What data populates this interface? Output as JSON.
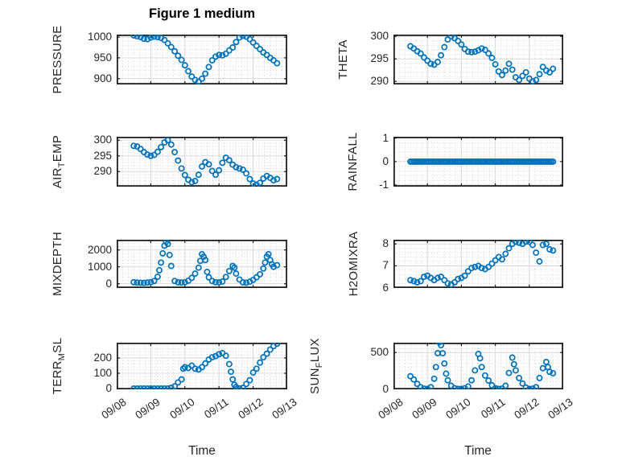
{
  "figure": {
    "title": "Figure 1 medium"
  },
  "xaxis": {
    "label": "Time",
    "tick_labels": [
      "09/08",
      "09/09",
      "09/10",
      "09/11",
      "09/12",
      "09/13"
    ],
    "tick_values": [
      0,
      1,
      2,
      3,
      4,
      5
    ],
    "unit": "days from 09/08"
  },
  "colors": {
    "marker": "#0072BD",
    "axis": "#1f1f1f",
    "grid_major": "#d9d9d9",
    "grid_minor": "#d4d4d4",
    "background": "#ffffff",
    "text": "#262626"
  },
  "chart_data": [
    {
      "type": "scatter",
      "name": "PRESSURE",
      "ylabel": {
        "pre": "PRESSURE",
        "sub": "",
        "post": ""
      },
      "yticks": [
        900,
        950,
        1000
      ],
      "ylim": [
        886,
        1006
      ],
      "y_minor_step": 10,
      "x": [
        0.5,
        0.6,
        0.7,
        0.8,
        0.9,
        1.0,
        1.1,
        1.2,
        1.3,
        1.4,
        1.5,
        1.6,
        1.7,
        1.8,
        1.9,
        2.0,
        2.1,
        2.2,
        2.3,
        2.4,
        2.5,
        2.6,
        2.7,
        2.8,
        2.9,
        3.0,
        3.1,
        3.2,
        3.3,
        3.4,
        3.5,
        3.6,
        3.7,
        3.8,
        3.9,
        4.0,
        4.1,
        4.2,
        4.3,
        4.4,
        4.5,
        4.6,
        4.7
      ],
      "y": [
        1004,
        1002,
        1000,
        996,
        995,
        999,
        1001,
        1000,
        998,
        993,
        985,
        976,
        966,
        955,
        945,
        932,
        918,
        905,
        897,
        893,
        900,
        912,
        928,
        944,
        953,
        957,
        956,
        960,
        968,
        975,
        988,
        999,
        1003,
        1001,
        995,
        987,
        979,
        971,
        963,
        957,
        950,
        944,
        937
      ]
    },
    {
      "type": "scatter",
      "name": "THETA",
      "ylabel": {
        "pre": "THETA",
        "sub": "",
        "post": ""
      },
      "yticks": [
        290,
        295,
        300
      ],
      "ylim": [
        289.3,
        300.4
      ],
      "y_minor_step": 1,
      "x": [
        0.5,
        0.6,
        0.7,
        0.8,
        0.9,
        1.0,
        1.1,
        1.2,
        1.3,
        1.4,
        1.5,
        1.6,
        1.7,
        1.8,
        1.9,
        2.0,
        2.1,
        2.2,
        2.3,
        2.4,
        2.5,
        2.6,
        2.7,
        2.8,
        2.9,
        3.0,
        3.1,
        3.2,
        3.3,
        3.4,
        3.5,
        3.6,
        3.7,
        3.8,
        3.9,
        4.0,
        4.1,
        4.2,
        4.3,
        4.4,
        4.5,
        4.6,
        4.7
      ],
      "y": [
        297.8,
        297.3,
        296.7,
        296.2,
        295.3,
        294.6,
        293.9,
        293.7,
        294.3,
        295.8,
        297.6,
        299.3,
        300,
        299.6,
        299,
        298.2,
        297.2,
        296.6,
        296.5,
        296.6,
        296.9,
        297.3,
        297,
        296.2,
        295.2,
        293.8,
        292.2,
        291.4,
        292.4,
        293.9,
        292.6,
        290.9,
        290.3,
        291.2,
        292,
        290.6,
        290,
        290.3,
        291.6,
        293.2,
        292.4,
        292,
        292.8
      ]
    },
    {
      "type": "scatter",
      "name": "AIR_TEMP",
      "ylabel": {
        "pre": "AIR",
        "sub": "T",
        "post": "EMP"
      },
      "yticks": [
        290,
        295,
        300
      ],
      "ylim": [
        285.2,
        301.1
      ],
      "y_minor_step": 1,
      "x": [
        0.5,
        0.6,
        0.7,
        0.8,
        0.9,
        1.0,
        1.1,
        1.2,
        1.3,
        1.4,
        1.5,
        1.6,
        1.7,
        1.8,
        1.9,
        2.0,
        2.1,
        2.2,
        2.3,
        2.4,
        2.5,
        2.6,
        2.7,
        2.8,
        2.9,
        3.0,
        3.1,
        3.2,
        3.3,
        3.4,
        3.5,
        3.6,
        3.7,
        3.8,
        3.9,
        4.0,
        4.1,
        4.2,
        4.3,
        4.4,
        4.5,
        4.6,
        4.7
      ],
      "y": [
        298.2,
        298,
        297.2,
        296.2,
        295.4,
        295,
        295.3,
        296.3,
        297.8,
        299.3,
        300,
        298.6,
        296.2,
        293.5,
        291,
        288.9,
        287.4,
        286.6,
        287,
        289,
        291.6,
        293,
        292.3,
        290.2,
        289,
        290.4,
        292.8,
        294.4,
        293.6,
        292.2,
        291.4,
        291,
        290.6,
        289.4,
        287.6,
        286.2,
        285.8,
        286.4,
        287.8,
        288.6,
        288,
        287.2,
        287.6
      ]
    },
    {
      "type": "scatter",
      "name": "RAINFALL",
      "ylabel": {
        "pre": "RAINFALL",
        "sub": "",
        "post": ""
      },
      "yticks": [
        -1,
        0,
        1
      ],
      "ylim": [
        -1.07,
        1.06
      ],
      "y_minor_step": 0.2,
      "x": [
        0.5,
        0.55,
        0.6,
        0.65,
        0.7,
        0.75,
        0.8,
        0.85,
        0.9,
        0.95,
        1,
        1.05,
        1.1,
        1.15,
        1.2,
        1.25,
        1.3,
        1.35,
        1.4,
        1.45,
        1.5,
        1.55,
        1.6,
        1.65,
        1.7,
        1.75,
        1.8,
        1.85,
        1.9,
        1.95,
        2,
        2.05,
        2.1,
        2.15,
        2.2,
        2.25,
        2.3,
        2.35,
        2.4,
        2.45,
        2.5,
        2.55,
        2.6,
        2.65,
        2.7,
        2.75,
        2.8,
        2.85,
        2.9,
        2.95,
        3,
        3.05,
        3.1,
        3.15,
        3.2,
        3.25,
        3.3,
        3.35,
        3.4,
        3.45,
        3.5,
        3.55,
        3.6,
        3.65,
        3.7,
        3.75,
        3.8,
        3.85,
        3.9,
        3.95,
        4,
        4.05,
        4.1,
        4.15,
        4.2,
        4.25,
        4.3,
        4.35,
        4.4,
        4.45,
        4.5,
        4.55,
        4.6,
        4.65,
        4.7
      ],
      "y": [
        0,
        0,
        0,
        0,
        0,
        0,
        0,
        0,
        0,
        0,
        0,
        0,
        0,
        0,
        0,
        0,
        0,
        0,
        0,
        0,
        0,
        0,
        0,
        0,
        0,
        0,
        0,
        0,
        0,
        0,
        0,
        0,
        0,
        0,
        0,
        0,
        0,
        0,
        0,
        0,
        0,
        0,
        0,
        0,
        0,
        0,
        0,
        0,
        0,
        0,
        0,
        0,
        0,
        0,
        0,
        0,
        0,
        0,
        0,
        0,
        0,
        0,
        0,
        0,
        0,
        0,
        0,
        0,
        0,
        0,
        0,
        0,
        0,
        0,
        0,
        0,
        0,
        0,
        0,
        0,
        0,
        0,
        0,
        0,
        0
      ]
    },
    {
      "type": "scatter",
      "name": "MIXDEPTH",
      "ylabel": {
        "pre": "MIXDEPTH",
        "sub": "",
        "post": ""
      },
      "yticks": [
        0,
        1000,
        2000
      ],
      "ylim": [
        -252,
        2604
      ],
      "y_minor_step": 200,
      "x": [
        0.5,
        0.6,
        0.7,
        0.8,
        0.9,
        1.0,
        1.1,
        1.2,
        1.25,
        1.3,
        1.35,
        1.4,
        1.45,
        1.5,
        1.55,
        1.6,
        1.7,
        1.8,
        1.9,
        2.0,
        2.1,
        2.2,
        2.3,
        2.4,
        2.45,
        2.5,
        2.55,
        2.6,
        2.65,
        2.7,
        2.8,
        2.9,
        3.0,
        3.1,
        3.2,
        3.3,
        3.4,
        3.45,
        3.5,
        3.6,
        3.7,
        3.8,
        3.9,
        4.0,
        4.1,
        4.2,
        4.3,
        4.35,
        4.4,
        4.45,
        4.5,
        4.55,
        4.6,
        4.7
      ],
      "y": [
        90,
        70,
        60,
        55,
        70,
        90,
        160,
        420,
        800,
        1250,
        1800,
        2250,
        2480,
        2350,
        1700,
        1050,
        160,
        80,
        70,
        90,
        180,
        350,
        600,
        950,
        1350,
        1750,
        1600,
        1400,
        700,
        380,
        160,
        90,
        80,
        130,
        400,
        750,
        1050,
        950,
        600,
        250,
        80,
        60,
        120,
        230,
        380,
        560,
        900,
        1250,
        1600,
        1750,
        1400,
        1150,
        1000,
        1100
      ]
    },
    {
      "type": "scatter",
      "name": "H2OMIXRA",
      "ylabel": {
        "pre": "H2OMIXRA",
        "sub": "",
        "post": ""
      },
      "yticks": [
        6,
        7,
        8
      ],
      "ylim": [
        5.99,
        8.19
      ],
      "y_minor_step": 0.2,
      "x": [
        0.5,
        0.6,
        0.7,
        0.8,
        0.9,
        1.0,
        1.1,
        1.2,
        1.3,
        1.4,
        1.5,
        1.6,
        1.7,
        1.8,
        1.9,
        2.0,
        2.1,
        2.2,
        2.3,
        2.4,
        2.5,
        2.6,
        2.7,
        2.8,
        2.9,
        3.0,
        3.1,
        3.2,
        3.3,
        3.4,
        3.5,
        3.6,
        3.7,
        3.8,
        3.9,
        4.0,
        4.1,
        4.2,
        4.3,
        4.4,
        4.5,
        4.6,
        4.7
      ],
      "y": [
        6.35,
        6.3,
        6.25,
        6.3,
        6.5,
        6.55,
        6.45,
        6.35,
        6.45,
        6.5,
        6.35,
        6.2,
        6.15,
        6.25,
        6.4,
        6.45,
        6.55,
        6.75,
        6.9,
        6.95,
        7.0,
        6.9,
        6.85,
        6.95,
        7.1,
        7.25,
        7.4,
        7.3,
        7.55,
        7.8,
        8.0,
        8.1,
        8.05,
        8.0,
        8.1,
        8.1,
        7.95,
        7.6,
        7.2,
        7.95,
        8.0,
        7.75,
        7.7
      ]
    },
    {
      "type": "scatter",
      "name": "TERR_MSL",
      "ylabel": {
        "pre": "TERR",
        "sub": "M",
        "post": "SL"
      },
      "yticks": [
        0,
        100,
        200
      ],
      "ylim": [
        -5,
        300
      ],
      "y_minor_step": 20,
      "x": [
        0.5,
        0.6,
        0.7,
        0.8,
        0.9,
        1.0,
        1.1,
        1.2,
        1.3,
        1.4,
        1.5,
        1.6,
        1.7,
        1.8,
        1.9,
        1.95,
        2.0,
        2.1,
        2.2,
        2.3,
        2.4,
        2.5,
        2.6,
        2.7,
        2.8,
        2.9,
        3.0,
        3.1,
        3.2,
        3.3,
        3.35,
        3.4,
        3.45,
        3.5,
        3.6,
        3.7,
        3.8,
        3.9,
        4.0,
        4.1,
        4.2,
        4.3,
        4.4,
        4.5,
        4.6,
        4.7
      ],
      "y": [
        0,
        0,
        0,
        0,
        0,
        0,
        0,
        0,
        0,
        0,
        0,
        5,
        15,
        40,
        60,
        130,
        140,
        135,
        150,
        130,
        125,
        140,
        165,
        190,
        205,
        212,
        225,
        232,
        215,
        160,
        110,
        60,
        25,
        10,
        0,
        5,
        30,
        55,
        105,
        130,
        170,
        205,
        228,
        255,
        278,
        293
      ]
    },
    {
      "type": "scatter",
      "name": "SUN_FLUX",
      "ylabel": {
        "pre": "SUN",
        "sub": "F",
        "post": "LUX"
      },
      "yticks": [
        0,
        500
      ],
      "ylim": [
        -5,
        634
      ],
      "y_minor_step": 50,
      "x": [
        0.5,
        0.6,
        0.7,
        0.8,
        0.9,
        1.0,
        1.1,
        1.2,
        1.25,
        1.3,
        1.35,
        1.4,
        1.45,
        1.5,
        1.55,
        1.6,
        1.7,
        1.8,
        1.9,
        2.0,
        2.1,
        2.2,
        2.3,
        2.4,
        2.5,
        2.55,
        2.6,
        2.7,
        2.8,
        2.9,
        3.0,
        3.1,
        3.2,
        3.3,
        3.4,
        3.5,
        3.55,
        3.6,
        3.7,
        3.8,
        3.9,
        4.0,
        4.1,
        4.2,
        4.3,
        4.4,
        4.5,
        4.55,
        4.6,
        4.7
      ],
      "y": [
        175,
        130,
        70,
        25,
        5,
        0,
        25,
        140,
        300,
        490,
        640,
        600,
        490,
        350,
        210,
        120,
        45,
        10,
        0,
        0,
        10,
        35,
        120,
        255,
        480,
        420,
        300,
        185,
        115,
        50,
        10,
        0,
        5,
        45,
        220,
        430,
        340,
        255,
        150,
        75,
        20,
        0,
        5,
        25,
        150,
        285,
        370,
        300,
        235,
        215
      ]
    }
  ]
}
